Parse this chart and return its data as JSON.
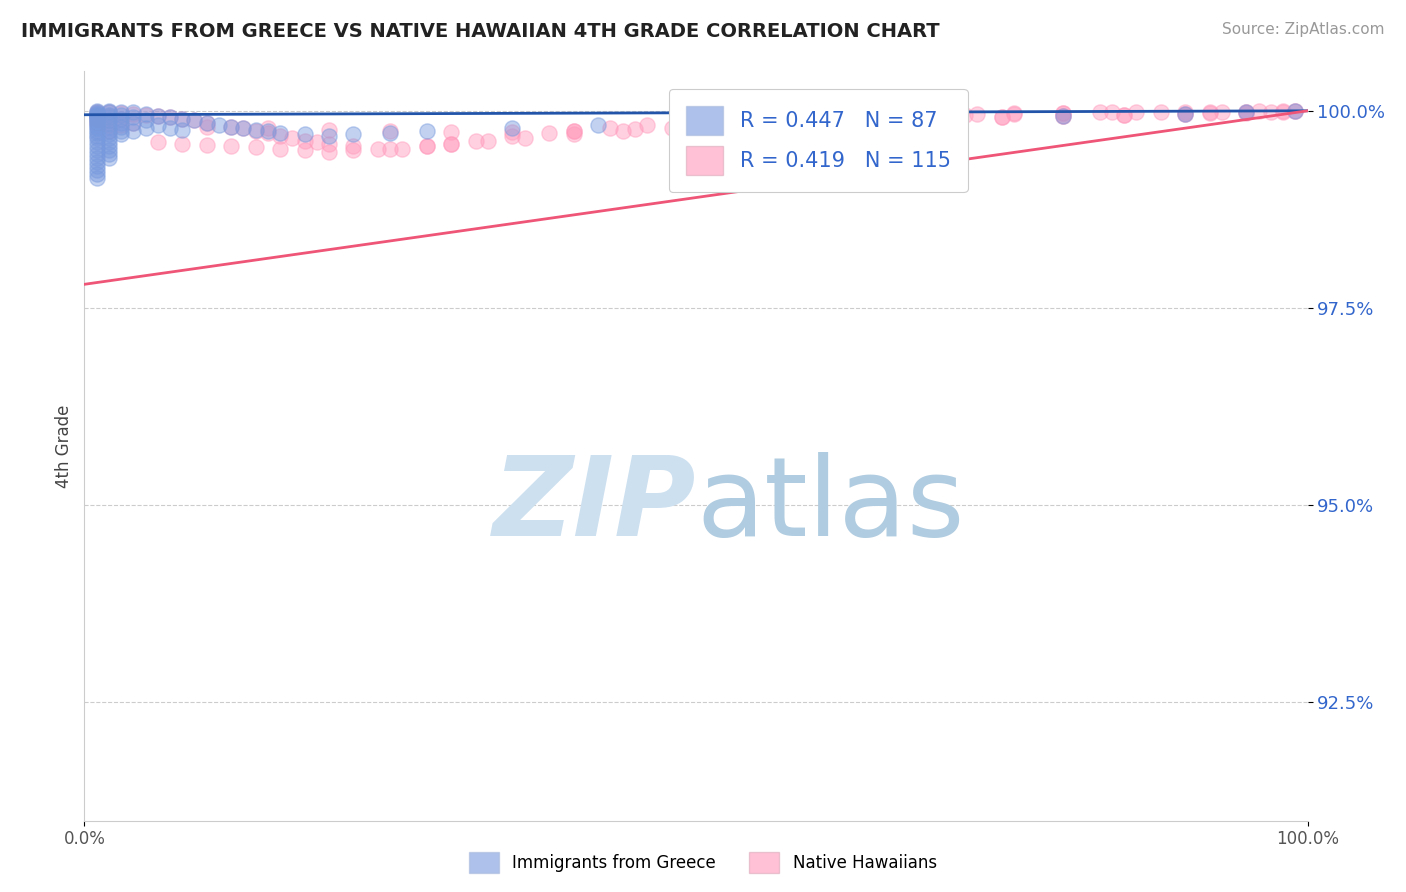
{
  "title": "IMMIGRANTS FROM GREECE VS NATIVE HAWAIIAN 4TH GRADE CORRELATION CHART",
  "source_text": "Source: ZipAtlas.com",
  "ylabel": "4th Grade",
  "xlim": [
    0.0,
    1.0
  ],
  "ylim": [
    0.91,
    1.005
  ],
  "y_tick_values": [
    0.925,
    0.95,
    0.975,
    1.0
  ],
  "y_tick_labels": [
    "92.5%",
    "95.0%",
    "97.5%",
    "100.0%"
  ],
  "blue_color": "#7799dd",
  "pink_color": "#ff99bb",
  "blue_line_color": "#2255aa",
  "pink_line_color": "#ee5577",
  "blue_line_x": [
    0.0,
    1.0
  ],
  "blue_line_y": [
    0.9995,
    1.0
  ],
  "pink_line_x": [
    0.0,
    1.0
  ],
  "pink_line_y": [
    0.978,
    1.0
  ],
  "scatter_size": 120,
  "background_color": "#ffffff",
  "grid_color": "#cccccc",
  "blue_scatter_x": [
    0.01,
    0.01,
    0.01,
    0.01,
    0.01,
    0.01,
    0.01,
    0.01,
    0.01,
    0.01,
    0.01,
    0.01,
    0.01,
    0.01,
    0.01,
    0.01,
    0.01,
    0.01,
    0.01,
    0.01,
    0.01,
    0.01,
    0.01,
    0.01,
    0.01,
    0.01,
    0.01,
    0.01,
    0.01,
    0.01,
    0.02,
    0.02,
    0.02,
    0.02,
    0.02,
    0.02,
    0.02,
    0.02,
    0.02,
    0.02,
    0.02,
    0.02,
    0.02,
    0.02,
    0.02,
    0.03,
    0.03,
    0.03,
    0.03,
    0.03,
    0.03,
    0.03,
    0.04,
    0.04,
    0.04,
    0.04,
    0.05,
    0.05,
    0.05,
    0.06,
    0.06,
    0.07,
    0.07,
    0.08,
    0.08,
    0.09,
    0.1,
    0.11,
    0.12,
    0.13,
    0.14,
    0.15,
    0.16,
    0.18,
    0.2,
    0.22,
    0.25,
    0.28,
    0.35,
    0.42,
    0.5,
    0.6,
    0.7,
    0.8,
    0.9,
    0.95,
    0.99
  ],
  "blue_scatter_y": [
    1.0,
    0.9998,
    0.9997,
    0.9996,
    0.9995,
    0.9994,
    0.9993,
    0.9992,
    0.9991,
    0.999,
    0.9988,
    0.9986,
    0.9984,
    0.9982,
    0.998,
    0.9978,
    0.9975,
    0.9972,
    0.9968,
    0.9965,
    0.996,
    0.9955,
    0.995,
    0.9945,
    0.994,
    0.9935,
    0.993,
    0.9925,
    0.992,
    0.9915,
    1.0,
    0.9998,
    0.9995,
    0.9992,
    0.9988,
    0.9985,
    0.998,
    0.9975,
    0.997,
    0.9965,
    0.996,
    0.9955,
    0.995,
    0.9945,
    0.994,
    0.9998,
    0.9995,
    0.999,
    0.9985,
    0.998,
    0.9975,
    0.997,
    0.9998,
    0.9992,
    0.9985,
    0.9975,
    0.9996,
    0.9988,
    0.9978,
    0.9994,
    0.9982,
    0.9992,
    0.9978,
    0.999,
    0.9976,
    0.9988,
    0.9985,
    0.9982,
    0.998,
    0.9978,
    0.9976,
    0.9974,
    0.9972,
    0.997,
    0.9968,
    0.997,
    0.9972,
    0.9974,
    0.9978,
    0.9982,
    0.9985,
    0.9988,
    0.9991,
    0.9993,
    0.9996,
    0.9998,
    1.0
  ],
  "pink_scatter_x": [
    0.01,
    0.01,
    0.01,
    0.01,
    0.02,
    0.02,
    0.02,
    0.02,
    0.02,
    0.03,
    0.03,
    0.03,
    0.04,
    0.04,
    0.05,
    0.06,
    0.07,
    0.08,
    0.09,
    0.1,
    0.12,
    0.13,
    0.14,
    0.15,
    0.16,
    0.17,
    0.18,
    0.19,
    0.2,
    0.22,
    0.24,
    0.26,
    0.28,
    0.3,
    0.32,
    0.35,
    0.38,
    0.4,
    0.43,
    0.46,
    0.5,
    0.53,
    0.56,
    0.6,
    0.63,
    0.66,
    0.7,
    0.73,
    0.76,
    0.8,
    0.83,
    0.86,
    0.9,
    0.93,
    0.96,
    0.99,
    0.06,
    0.08,
    0.1,
    0.12,
    0.14,
    0.16,
    0.18,
    0.2,
    0.22,
    0.25,
    0.28,
    0.3,
    0.33,
    0.36,
    0.4,
    0.44,
    0.48,
    0.52,
    0.56,
    0.6,
    0.64,
    0.68,
    0.72,
    0.76,
    0.8,
    0.84,
    0.88,
    0.92,
    0.95,
    0.98,
    0.1,
    0.15,
    0.2,
    0.25,
    0.3,
    0.35,
    0.4,
    0.45,
    0.5,
    0.55,
    0.6,
    0.65,
    0.7,
    0.75,
    0.8,
    0.85,
    0.9,
    0.95,
    0.98,
    0.6,
    0.7,
    0.75,
    0.8,
    0.85,
    0.9,
    0.92,
    0.95,
    0.97,
    0.99
  ],
  "pink_scatter_y": [
    0.9998,
    0.9995,
    0.999,
    0.9985,
    0.9998,
    0.9994,
    0.9988,
    0.9982,
    0.9975,
    0.9997,
    0.999,
    0.9982,
    0.9996,
    0.9985,
    0.9995,
    0.9994,
    0.9992,
    0.999,
    0.9988,
    0.9985,
    0.998,
    0.9978,
    0.9975,
    0.9972,
    0.9968,
    0.9965,
    0.9962,
    0.996,
    0.9958,
    0.9955,
    0.9952,
    0.9952,
    0.9955,
    0.9958,
    0.9962,
    0.9968,
    0.9972,
    0.9975,
    0.9978,
    0.9982,
    0.9986,
    0.9988,
    0.999,
    0.9992,
    0.9993,
    0.9994,
    0.9995,
    0.9996,
    0.9997,
    0.9997,
    0.9998,
    0.9998,
    0.9999,
    0.9999,
    1.0,
    1.0,
    0.996,
    0.9958,
    0.9956,
    0.9955,
    0.9954,
    0.9952,
    0.995,
    0.9948,
    0.995,
    0.9952,
    0.9955,
    0.9958,
    0.9962,
    0.9965,
    0.997,
    0.9974,
    0.9978,
    0.9982,
    0.9986,
    0.9989,
    0.9991,
    0.9993,
    0.9995,
    0.9996,
    0.9997,
    0.9998,
    0.9998,
    0.9999,
    0.9999,
    1.0,
    0.998,
    0.9978,
    0.9976,
    0.9975,
    0.9973,
    0.9973,
    0.9975,
    0.9977,
    0.998,
    0.9982,
    0.9985,
    0.9987,
    0.999,
    0.9992,
    0.9994,
    0.9995,
    0.9996,
    0.9997,
    0.9998,
    0.9985,
    0.999,
    0.9992,
    0.9994,
    0.9995,
    0.9996,
    0.9997,
    0.9998,
    0.9999,
    1.0
  ]
}
